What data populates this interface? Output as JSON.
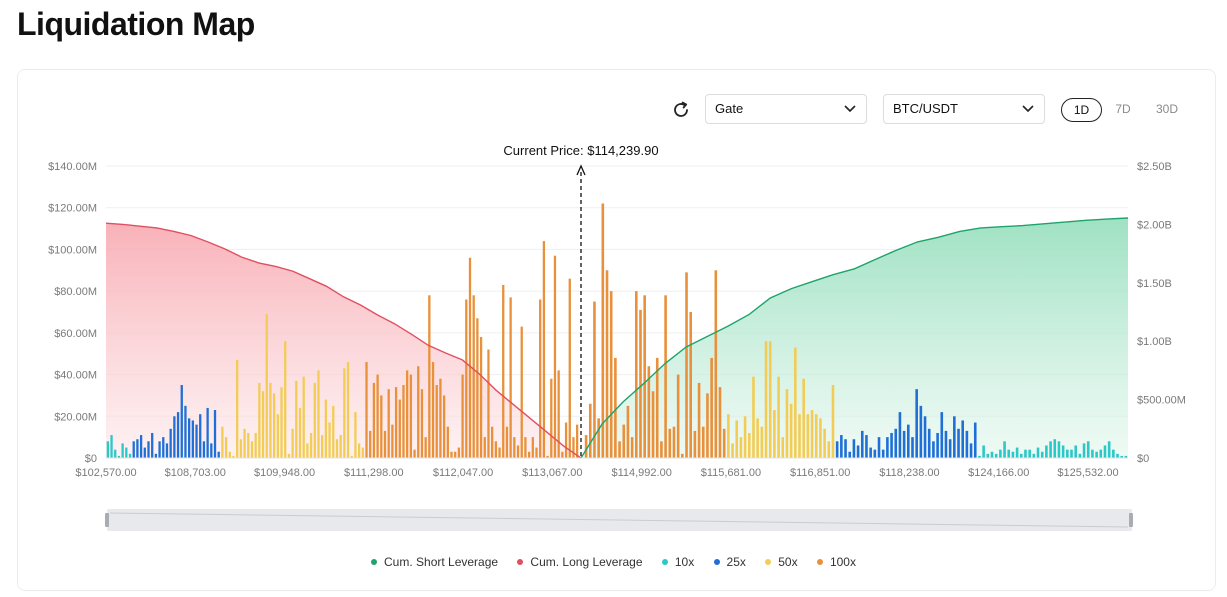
{
  "page": {
    "title": "Liquidation Map"
  },
  "toolbar": {
    "exchange": "Gate",
    "pair": "BTC/USDT",
    "ranges": [
      "1D",
      "7D",
      "30D"
    ],
    "active_range": "1D"
  },
  "icons": {
    "refresh": "refresh-icon",
    "dropdown": "chevron-down-icon"
  },
  "colors": {
    "short": "#1fa36c",
    "long": "#e05060",
    "x10": "#2cc7c7",
    "x25": "#1f6fd6",
    "x50": "#f2cc55",
    "x100": "#e8903a"
  },
  "chart_data": {
    "type": "bar",
    "current_price_label": "Current Price: $114,239.90",
    "x_tick_labels": [
      "$102,570.00",
      "$108,703.00",
      "$109,948.00",
      "$111,298.00",
      "$112,047.00",
      "$113,067.00",
      "$114,992.00",
      "$115,681.00",
      "$116,851.00",
      "$118,238.00",
      "$124,166.00",
      "$125,532.00"
    ],
    "y_left": {
      "ticks": [
        "$0",
        "$20.00M",
        "$40.00M",
        "$60.00M",
        "$80.00M",
        "$100.00M",
        "$120.00M",
        "$140.00M"
      ],
      "range": [
        0,
        140
      ]
    },
    "y_right": {
      "ticks": [
        "$0",
        "$500.00M",
        "$1.00B",
        "$1.50B",
        "$2.00B",
        "$2.50B"
      ],
      "range": [
        0,
        2500
      ]
    },
    "legend": [
      {
        "key": "short",
        "label": "Cum. Short Leverage"
      },
      {
        "key": "long",
        "label": "Cum. Long Leverage"
      },
      {
        "key": "x10",
        "label": "10x"
      },
      {
        "key": "x25",
        "label": "25x"
      },
      {
        "key": "x50",
        "label": "50x"
      },
      {
        "key": "x100",
        "label": "100x"
      }
    ],
    "bars_left": [
      {
        "l": "x10",
        "v": 8
      },
      {
        "l": "x10",
        "v": 11
      },
      {
        "l": "x10",
        "v": 4
      },
      {
        "l": "x10",
        "v": 1
      },
      {
        "l": "x10",
        "v": 7
      },
      {
        "l": "x10",
        "v": 5
      },
      {
        "l": "x10",
        "v": 2
      },
      {
        "l": "x25",
        "v": 8
      },
      {
        "l": "x25",
        "v": 9
      },
      {
        "l": "x25",
        "v": 11
      },
      {
        "l": "x25",
        "v": 5
      },
      {
        "l": "x25",
        "v": 8
      },
      {
        "l": "x25",
        "v": 12
      },
      {
        "l": "x25",
        "v": 2
      },
      {
        "l": "x25",
        "v": 8
      },
      {
        "l": "x25",
        "v": 10
      },
      {
        "l": "x25",
        "v": 7
      },
      {
        "l": "x25",
        "v": 14
      },
      {
        "l": "x25",
        "v": 20
      },
      {
        "l": "x25",
        "v": 22
      },
      {
        "l": "x25",
        "v": 35
      },
      {
        "l": "x25",
        "v": 25
      },
      {
        "l": "x25",
        "v": 19
      },
      {
        "l": "x25",
        "v": 18
      },
      {
        "l": "x25",
        "v": 16
      },
      {
        "l": "x25",
        "v": 21
      },
      {
        "l": "x25",
        "v": 8
      },
      {
        "l": "x25",
        "v": 24
      },
      {
        "l": "x25",
        "v": 7
      },
      {
        "l": "x25",
        "v": 23
      },
      {
        "l": "x25",
        "v": 3
      },
      {
        "l": "x50",
        "v": 15
      },
      {
        "l": "x50",
        "v": 10
      },
      {
        "l": "x50",
        "v": 3
      },
      {
        "l": "x50",
        "v": 1
      },
      {
        "l": "x50",
        "v": 47
      },
      {
        "l": "x50",
        "v": 9
      },
      {
        "l": "x50",
        "v": 14
      },
      {
        "l": "x50",
        "v": 12
      },
      {
        "l": "x50",
        "v": 8
      },
      {
        "l": "x50",
        "v": 12
      },
      {
        "l": "x50",
        "v": 36
      },
      {
        "l": "x50",
        "v": 32
      },
      {
        "l": "x50",
        "v": 69
      },
      {
        "l": "x50",
        "v": 36
      },
      {
        "l": "x50",
        "v": 31
      },
      {
        "l": "x50",
        "v": 21
      },
      {
        "l": "x50",
        "v": 34
      },
      {
        "l": "x50",
        "v": 56
      },
      {
        "l": "x50",
        "v": 2
      },
      {
        "l": "x50",
        "v": 14
      },
      {
        "l": "x50",
        "v": 37
      },
      {
        "l": "x50",
        "v": 24
      },
      {
        "l": "x50",
        "v": 39
      },
      {
        "l": "x50",
        "v": 7
      },
      {
        "l": "x50",
        "v": 12
      },
      {
        "l": "x50",
        "v": 36
      },
      {
        "l": "x50",
        "v": 42
      },
      {
        "l": "x50",
        "v": 11
      },
      {
        "l": "x50",
        "v": 28
      },
      {
        "l": "x50",
        "v": 17
      },
      {
        "l": "x50",
        "v": 25
      },
      {
        "l": "x50",
        "v": 9
      },
      {
        "l": "x50",
        "v": 11
      },
      {
        "l": "x50",
        "v": 43
      },
      {
        "l": "x50",
        "v": 46
      },
      {
        "l": "x50",
        "v": 1
      },
      {
        "l": "x50",
        "v": 22
      },
      {
        "l": "x50",
        "v": 7
      },
      {
        "l": "x50",
        "v": 5
      },
      {
        "l": "x100",
        "v": 46
      },
      {
        "l": "x100",
        "v": 13
      },
      {
        "l": "x100",
        "v": 36
      },
      {
        "l": "x100",
        "v": 40
      },
      {
        "l": "x100",
        "v": 30
      },
      {
        "l": "x100",
        "v": 13
      },
      {
        "l": "x100",
        "v": 33
      },
      {
        "l": "x100",
        "v": 16
      },
      {
        "l": "x100",
        "v": 34
      },
      {
        "l": "x100",
        "v": 28
      },
      {
        "l": "x100",
        "v": 35
      },
      {
        "l": "x100",
        "v": 42
      },
      {
        "l": "x100",
        "v": 40
      },
      {
        "l": "x100",
        "v": 4
      },
      {
        "l": "x100",
        "v": 44
      },
      {
        "l": "x100",
        "v": 33
      },
      {
        "l": "x100",
        "v": 10
      },
      {
        "l": "x100",
        "v": 78
      },
      {
        "l": "x100",
        "v": 46
      },
      {
        "l": "x100",
        "v": 35
      },
      {
        "l": "x100",
        "v": 38
      },
      {
        "l": "x100",
        "v": 30
      },
      {
        "l": "x100",
        "v": 15
      },
      {
        "l": "x100",
        "v": 3
      },
      {
        "l": "x100",
        "v": 3
      },
      {
        "l": "x100",
        "v": 5
      },
      {
        "l": "x100",
        "v": 40
      },
      {
        "l": "x100",
        "v": 76
      },
      {
        "l": "x100",
        "v": 96
      },
      {
        "l": "x100",
        "v": 78
      },
      {
        "l": "x100",
        "v": 67
      },
      {
        "l": "x100",
        "v": 58
      },
      {
        "l": "x100",
        "v": 10
      },
      {
        "l": "x100",
        "v": 52
      },
      {
        "l": "x100",
        "v": 15
      },
      {
        "l": "x100",
        "v": 8
      },
      {
        "l": "x100",
        "v": 5
      },
      {
        "l": "x100",
        "v": 83
      },
      {
        "l": "x100",
        "v": 15
      },
      {
        "l": "x100",
        "v": 77
      },
      {
        "l": "x100",
        "v": 10
      },
      {
        "l": "x100",
        "v": 6
      },
      {
        "l": "x100",
        "v": 63
      },
      {
        "l": "x100",
        "v": 10
      },
      {
        "l": "x100",
        "v": 3
      },
      {
        "l": "x100",
        "v": 10
      },
      {
        "l": "x100",
        "v": 5
      },
      {
        "l": "x100",
        "v": 76
      },
      {
        "l": "x100",
        "v": 104
      },
      {
        "l": "x100",
        "v": 1
      },
      {
        "l": "x100",
        "v": 38
      },
      {
        "l": "x100",
        "v": 97
      },
      {
        "l": "x100",
        "v": 42
      },
      {
        "l": "x100",
        "v": 3
      },
      {
        "l": "x100",
        "v": 17
      },
      {
        "l": "x100",
        "v": 86
      },
      {
        "l": "x100",
        "v": 10
      },
      {
        "l": "x100",
        "v": 16
      }
    ],
    "bars_right": [
      {
        "l": "x100",
        "v": 11
      },
      {
        "l": "x100",
        "v": 26
      },
      {
        "l": "x100",
        "v": 75
      },
      {
        "l": "x100",
        "v": 19
      },
      {
        "l": "x100",
        "v": 122
      },
      {
        "l": "x100",
        "v": 90
      },
      {
        "l": "x100",
        "v": 80
      },
      {
        "l": "x100",
        "v": 48
      },
      {
        "l": "x100",
        "v": 8
      },
      {
        "l": "x100",
        "v": 16
      },
      {
        "l": "x100",
        "v": 25
      },
      {
        "l": "x100",
        "v": 10
      },
      {
        "l": "x100",
        "v": 80
      },
      {
        "l": "x100",
        "v": 71
      },
      {
        "l": "x100",
        "v": 78
      },
      {
        "l": "x100",
        "v": 44
      },
      {
        "l": "x100",
        "v": 32
      },
      {
        "l": "x100",
        "v": 48
      },
      {
        "l": "x100",
        "v": 8
      },
      {
        "l": "x100",
        "v": 78
      },
      {
        "l": "x100",
        "v": 14
      },
      {
        "l": "x100",
        "v": 15
      },
      {
        "l": "x100",
        "v": 40
      },
      {
        "l": "x100",
        "v": 2
      },
      {
        "l": "x100",
        "v": 89
      },
      {
        "l": "x100",
        "v": 70
      },
      {
        "l": "x100",
        "v": 13
      },
      {
        "l": "x100",
        "v": 36
      },
      {
        "l": "x100",
        "v": 15
      },
      {
        "l": "x100",
        "v": 31
      },
      {
        "l": "x100",
        "v": 48
      },
      {
        "l": "x100",
        "v": 90
      },
      {
        "l": "x100",
        "v": 34
      },
      {
        "l": "x100",
        "v": 14
      },
      {
        "l": "x50",
        "v": 21
      },
      {
        "l": "x50",
        "v": 7
      },
      {
        "l": "x50",
        "v": 18
      },
      {
        "l": "x50",
        "v": 10
      },
      {
        "l": "x50",
        "v": 20
      },
      {
        "l": "x50",
        "v": 12
      },
      {
        "l": "x50",
        "v": 39
      },
      {
        "l": "x50",
        "v": 19
      },
      {
        "l": "x50",
        "v": 15
      },
      {
        "l": "x50",
        "v": 56
      },
      {
        "l": "x50",
        "v": 56
      },
      {
        "l": "x50",
        "v": 23
      },
      {
        "l": "x50",
        "v": 39
      },
      {
        "l": "x50",
        "v": 10
      },
      {
        "l": "x50",
        "v": 33
      },
      {
        "l": "x50",
        "v": 26
      },
      {
        "l": "x50",
        "v": 53
      },
      {
        "l": "x50",
        "v": 21
      },
      {
        "l": "x50",
        "v": 38
      },
      {
        "l": "x50",
        "v": 21
      },
      {
        "l": "x50",
        "v": 23
      },
      {
        "l": "x50",
        "v": 21
      },
      {
        "l": "x50",
        "v": 19
      },
      {
        "l": "x50",
        "v": 14
      },
      {
        "l": "x50",
        "v": 8
      },
      {
        "l": "x50",
        "v": 35
      },
      {
        "l": "x25",
        "v": 8
      },
      {
        "l": "x25",
        "v": 11
      },
      {
        "l": "x25",
        "v": 9
      },
      {
        "l": "x25",
        "v": 3
      },
      {
        "l": "x25",
        "v": 9
      },
      {
        "l": "x25",
        "v": 6
      },
      {
        "l": "x25",
        "v": 13
      },
      {
        "l": "x25",
        "v": 11
      },
      {
        "l": "x25",
        "v": 5
      },
      {
        "l": "x25",
        "v": 4
      },
      {
        "l": "x25",
        "v": 10
      },
      {
        "l": "x25",
        "v": 4
      },
      {
        "l": "x25",
        "v": 10
      },
      {
        "l": "x25",
        "v": 12
      },
      {
        "l": "x25",
        "v": 14
      },
      {
        "l": "x25",
        "v": 22
      },
      {
        "l": "x25",
        "v": 13
      },
      {
        "l": "x25",
        "v": 16
      },
      {
        "l": "x25",
        "v": 10
      },
      {
        "l": "x25",
        "v": 33
      },
      {
        "l": "x25",
        "v": 25
      },
      {
        "l": "x25",
        "v": 20
      },
      {
        "l": "x25",
        "v": 14
      },
      {
        "l": "x25",
        "v": 8
      },
      {
        "l": "x25",
        "v": 12
      },
      {
        "l": "x25",
        "v": 22
      },
      {
        "l": "x25",
        "v": 13
      },
      {
        "l": "x25",
        "v": 9
      },
      {
        "l": "x25",
        "v": 20
      },
      {
        "l": "x25",
        "v": 14
      },
      {
        "l": "x25",
        "v": 18
      },
      {
        "l": "x25",
        "v": 13
      },
      {
        "l": "x25",
        "v": 7
      },
      {
        "l": "x25",
        "v": 17
      },
      {
        "l": "x10",
        "v": 1
      },
      {
        "l": "x10",
        "v": 6
      },
      {
        "l": "x10",
        "v": 2
      },
      {
        "l": "x10",
        "v": 3
      },
      {
        "l": "x10",
        "v": 2
      },
      {
        "l": "x10",
        "v": 4
      },
      {
        "l": "x10",
        "v": 8
      },
      {
        "l": "x10",
        "v": 4
      },
      {
        "l": "x10",
        "v": 3
      },
      {
        "l": "x10",
        "v": 5
      },
      {
        "l": "x10",
        "v": 2
      },
      {
        "l": "x10",
        "v": 4
      },
      {
        "l": "x10",
        "v": 4
      },
      {
        "l": "x10",
        "v": 2
      },
      {
        "l": "x10",
        "v": 5
      },
      {
        "l": "x10",
        "v": 3
      },
      {
        "l": "x10",
        "v": 6
      },
      {
        "l": "x10",
        "v": 8
      },
      {
        "l": "x10",
        "v": 9
      },
      {
        "l": "x10",
        "v": 8
      },
      {
        "l": "x10",
        "v": 6
      },
      {
        "l": "x10",
        "v": 4
      },
      {
        "l": "x10",
        "v": 4
      },
      {
        "l": "x10",
        "v": 6
      },
      {
        "l": "x10",
        "v": 2
      },
      {
        "l": "x10",
        "v": 7
      },
      {
        "l": "x10",
        "v": 8
      },
      {
        "l": "x10",
        "v": 4
      },
      {
        "l": "x10",
        "v": 3
      },
      {
        "l": "x10",
        "v": 4
      },
      {
        "l": "x10",
        "v": 6
      },
      {
        "l": "x10",
        "v": 8
      },
      {
        "l": "x10",
        "v": 4
      },
      {
        "l": "x10",
        "v": 2
      },
      {
        "l": "x10",
        "v": 1
      },
      {
        "l": "x10",
        "v": 1
      }
    ],
    "cum_long": [
      2010,
      2000,
      1985,
      1970,
      1940,
      1905,
      1850,
      1790,
      1720,
      1670,
      1640,
      1600,
      1535,
      1470,
      1380,
      1310,
      1225,
      1150,
      1060,
      965,
      900,
      840,
      720,
      580,
      460,
      340,
      220,
      100,
      0
    ],
    "cum_short": [
      0,
      290,
      480,
      640,
      810,
      950,
      1040,
      1130,
      1230,
      1370,
      1450,
      1510,
      1570,
      1620,
      1700,
      1780,
      1850,
      1890,
      1940,
      1970,
      1980,
      1990,
      2005,
      2020,
      2035,
      2045,
      2055
    ]
  }
}
